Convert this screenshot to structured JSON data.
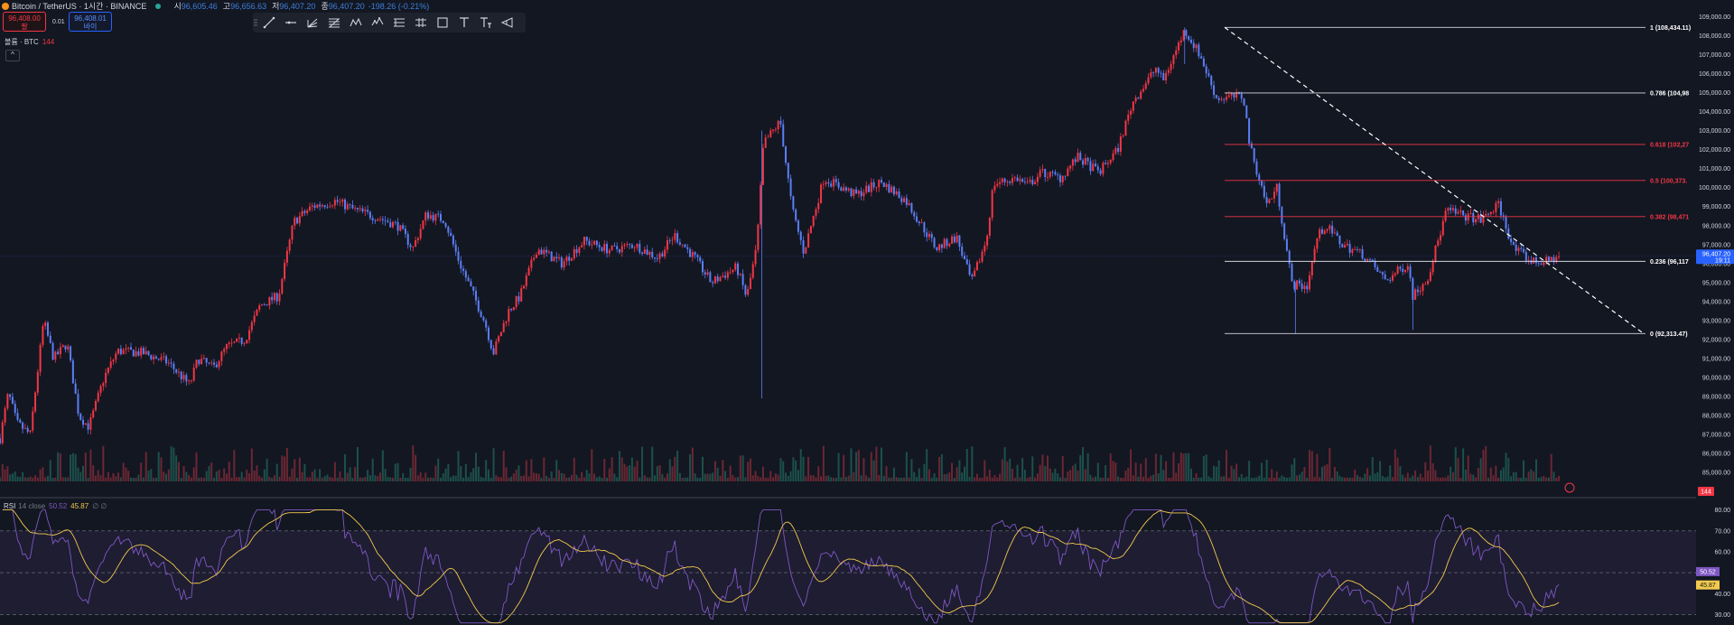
{
  "header": {
    "title": "Bitcoin / TetherUS · 1시간 · BINANCE",
    "open_label": "시",
    "open": "96,605.46",
    "high_label": "고",
    "high": "96,656.63",
    "low_label": "저",
    "low": "96,407.20",
    "close_label": "종",
    "close": "96,407.20",
    "change": "-198.26 (-0.21%)"
  },
  "trade": {
    "sell_price": "96,408.00",
    "sell_label": "팔",
    "spread": "0.01",
    "buy_price": "96,408.01",
    "buy_label": "바이"
  },
  "toolbar": {
    "icons": [
      "trend-line-icon",
      "horizontal-ray-icon",
      "pitchfork-icon",
      "fib-retracement-icon",
      "pattern-icon",
      "elliott-wave-icon",
      "long-position-icon",
      "short-position-icon",
      "rectangle-icon",
      "text-icon",
      "text-note-icon",
      "brush-icon"
    ]
  },
  "volume": {
    "label": "볼륨 · BTC",
    "value": "144"
  },
  "collapse": "^",
  "rsi": {
    "name": "RSI",
    "params": "14 close",
    "value": "50.52",
    "ma": "45.87",
    "extra": "∅ ∅"
  },
  "colors": {
    "background": "#131722",
    "up": "#f23645",
    "down": "#5b7ef5",
    "fib_white": "#d1d4dc",
    "fib_red": "#f23645",
    "rsi_line": "#7e57c2",
    "rsi_ma": "#f2c94c",
    "price_tag": "#2962ff",
    "volume_tag": "#f23645"
  },
  "chart_data": {
    "type": "candlestick",
    "price_axis": {
      "ticks": [
        "109,000.00",
        "108,000.00",
        "107,000.00",
        "106,000.00",
        "105,000.00",
        "104,000.00",
        "103,000.00",
        "102,000.00",
        "101,000.00",
        "100,000.00",
        "99,000.00",
        "98,000.00",
        "97,000.00",
        "96,000.00",
        "95,000.00",
        "94,000.00",
        "93,000.00",
        "92,000.00",
        "91,000.00",
        "90,000.00",
        "89,000.00",
        "88,000.00",
        "87,000.00",
        "86,000.00",
        "85,000.00"
      ],
      "range": [
        84200,
        109400
      ]
    },
    "last_price": {
      "value": 96407.2,
      "label": "96,407.20",
      "timer": "19:11"
    },
    "volume_tag": "144",
    "price_path": [
      [
        0,
        86800
      ],
      [
        0.5,
        89200
      ],
      [
        1,
        87600
      ],
      [
        1.8,
        87000
      ],
      [
        2.6,
        93000
      ],
      [
        3.2,
        91000
      ],
      [
        4,
        91800
      ],
      [
        4.7,
        88000
      ],
      [
        5.3,
        87400
      ],
      [
        6.2,
        90000
      ],
      [
        7,
        91400
      ],
      [
        8.5,
        91300
      ],
      [
        10,
        90800
      ],
      [
        11.3,
        89600
      ],
      [
        11.8,
        91000
      ],
      [
        12.7,
        90500
      ],
      [
        13.5,
        91600
      ],
      [
        14.6,
        92000
      ],
      [
        15.5,
        93800
      ],
      [
        16.6,
        94300
      ],
      [
        17.5,
        98200
      ],
      [
        18.6,
        99000
      ],
      [
        20,
        99300
      ],
      [
        21.2,
        98800
      ],
      [
        22.6,
        98400
      ],
      [
        23.7,
        98000
      ],
      [
        24.6,
        96800
      ],
      [
        25.4,
        98600
      ],
      [
        26.5,
        98300
      ],
      [
        27.4,
        96000
      ],
      [
        28,
        94800
      ],
      [
        28.9,
        92900
      ],
      [
        29.4,
        91300
      ],
      [
        30.3,
        93500
      ],
      [
        31,
        94300
      ],
      [
        32,
        96800
      ],
      [
        33.5,
        96000
      ],
      [
        34.8,
        97200
      ],
      [
        36.4,
        96700
      ],
      [
        37.8,
        97000
      ],
      [
        39.2,
        96300
      ],
      [
        40.2,
        97500
      ],
      [
        41.4,
        96300
      ],
      [
        42.4,
        95000
      ],
      [
        43.9,
        95800
      ],
      [
        44.5,
        94200
      ],
      [
        45.1,
        96900
      ],
      [
        45.5,
        102300
      ],
      [
        46.5,
        103500
      ],
      [
        47.2,
        98900
      ],
      [
        47.9,
        96600
      ],
      [
        49.1,
        100500
      ],
      [
        51,
        99600
      ],
      [
        52.5,
        100300
      ],
      [
        54,
        99300
      ],
      [
        55.8,
        96800
      ],
      [
        57,
        97400
      ],
      [
        57.9,
        95000
      ],
      [
        58.8,
        97300
      ],
      [
        59.2,
        100200
      ],
      [
        60.6,
        100500
      ],
      [
        61.2,
        100100
      ],
      [
        62.1,
        100800
      ],
      [
        63.2,
        100500
      ],
      [
        64.2,
        101600
      ],
      [
        65.5,
        100800
      ],
      [
        66.6,
        102000
      ],
      [
        67.5,
        104500
      ],
      [
        68.9,
        106300
      ],
      [
        69.3,
        105600
      ],
      [
        70.6,
        108300
      ],
      [
        71.5,
        107000
      ],
      [
        72.5,
        104700
      ],
      [
        74.1,
        104800
      ],
      [
        74.5,
        102100
      ],
      [
        75.5,
        99100
      ],
      [
        76.1,
        100000
      ],
      [
        77,
        94900
      ],
      [
        77.9,
        94800
      ],
      [
        78.5,
        97400
      ],
      [
        79,
        98000
      ],
      [
        80,
        97000
      ],
      [
        81.2,
        96500
      ],
      [
        82.6,
        95100
      ],
      [
        83.9,
        96000
      ],
      [
        84.2,
        94300
      ],
      [
        85.1,
        95300
      ],
      [
        86.2,
        98800
      ],
      [
        86.9,
        98600
      ],
      [
        88.3,
        98300
      ],
      [
        89.3,
        99100
      ],
      [
        90.2,
        96800
      ],
      [
        91.3,
        96100
      ],
      [
        92.2,
        96100
      ],
      [
        92.9,
        96400
      ]
    ],
    "rsi_axis": {
      "ticks": [
        "80.00",
        "70.00",
        "60.00",
        "40.00",
        "30.00"
      ],
      "range": [
        25,
        82
      ],
      "upper_band": 70,
      "lower_band": 30
    },
    "rsi_last": {
      "value": "50.52",
      "ma": "45.87"
    },
    "fibonacci": {
      "levels": [
        {
          "ratio": 1,
          "price": 108434.11,
          "label": "1 (108,434.11)",
          "color": "white"
        },
        {
          "ratio": 0.786,
          "price": 104983,
          "label": "0.786 (104,98",
          "color": "white"
        },
        {
          "ratio": 0.618,
          "price": 102272,
          "label": "0.618 (102,27",
          "color": "red"
        },
        {
          "ratio": 0.5,
          "price": 100373,
          "label": "0.5 (100,373.",
          "color": "red"
        },
        {
          "ratio": 0.382,
          "price": 98471,
          "label": "0.382 (98,471",
          "color": "red"
        },
        {
          "ratio": 0.236,
          "price": 96117,
          "label": "0.236 (96,117",
          "color": "white"
        },
        {
          "ratio": 0,
          "price": 92313.47,
          "label": "0 (92,313.47)",
          "color": "white"
        }
      ],
      "trend_from": [
        70.6,
        108434.11
      ],
      "trend_to": [
        95.2,
        92313.47
      ]
    }
  }
}
